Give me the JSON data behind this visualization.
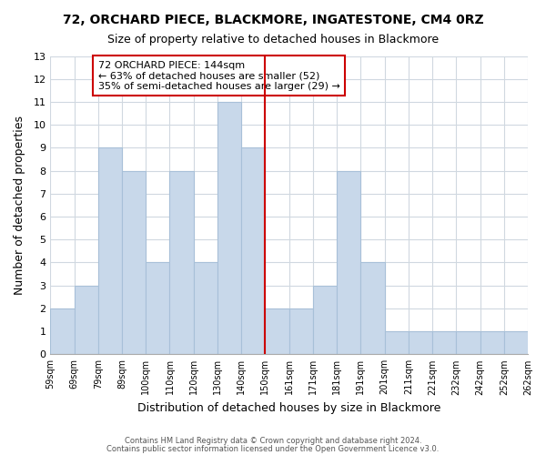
{
  "title1": "72, ORCHARD PIECE, BLACKMORE, INGATESTONE, CM4 0RZ",
  "title2": "Size of property relative to detached houses in Blackmore",
  "xlabel": "Distribution of detached houses by size in Blackmore",
  "ylabel": "Number of detached properties",
  "bin_labels": [
    "59sqm",
    "69sqm",
    "79sqm",
    "89sqm",
    "100sqm",
    "110sqm",
    "120sqm",
    "130sqm",
    "140sqm",
    "150sqm",
    "161sqm",
    "171sqm",
    "181sqm",
    "191sqm",
    "201sqm",
    "211sqm",
    "221sqm",
    "232sqm",
    "242sqm",
    "252sqm",
    "262sqm"
  ],
  "bar_heights": [
    2,
    3,
    9,
    8,
    4,
    8,
    4,
    11,
    9,
    2,
    2,
    3,
    8,
    4,
    1,
    1,
    1,
    1,
    1,
    1
  ],
  "bar_color": "#c8d8ea",
  "bar_edgecolor": "#a8c0d8",
  "vline_color": "#cc0000",
  "annotation_title": "72 ORCHARD PIECE: 144sqm",
  "annotation_line2": "← 63% of detached houses are smaller (52)",
  "annotation_line3": "35% of semi-detached houses are larger (29) →",
  "annotation_box_edgecolor": "#cc0000",
  "annotation_box_facecolor": "#ffffff",
  "ylim": [
    0,
    13
  ],
  "yticks": [
    0,
    1,
    2,
    3,
    4,
    5,
    6,
    7,
    8,
    9,
    10,
    11,
    12,
    13
  ],
  "footer1": "Contains HM Land Registry data © Crown copyright and database right 2024.",
  "footer2": "Contains public sector information licensed under the Open Government Licence v3.0.",
  "bg_color": "#ffffff",
  "grid_color": "#d0d8e0"
}
